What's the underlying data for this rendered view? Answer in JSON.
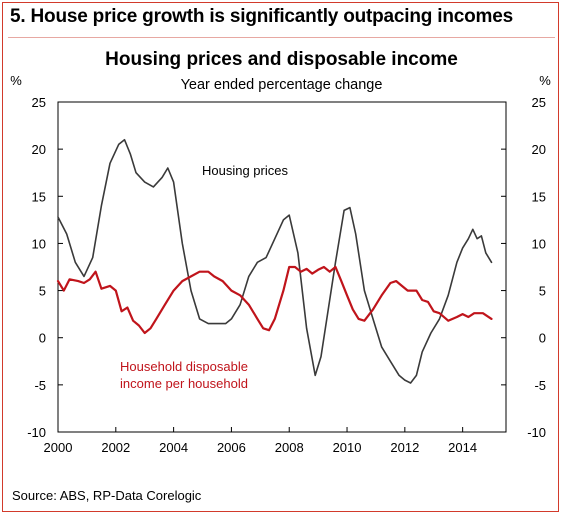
{
  "header": {
    "title": "5. House price growth is significantly outpacing incomes"
  },
  "footer": {
    "source": "Source: ABS, RP-Data Corelogic"
  },
  "chart_data": {
    "type": "line",
    "title": "Housing prices and disposable income",
    "subtitle": "Year ended percentage change",
    "y_unit_left": "%",
    "y_unit_right": "%",
    "ylim": [
      -10,
      25
    ],
    "yticks": [
      -10,
      -5,
      0,
      5,
      10,
      15,
      20,
      25
    ],
    "xlim": [
      2000,
      2015.5
    ],
    "xticks": [
      2000,
      2002,
      2004,
      2006,
      2008,
      2010,
      2012,
      2014
    ],
    "grid": false,
    "legend": "inline labels",
    "series": [
      {
        "name": "Housing prices",
        "color": "#3a3a3a",
        "points": [
          [
            2000.0,
            12.8
          ],
          [
            2000.3,
            11.0
          ],
          [
            2000.6,
            8.0
          ],
          [
            2000.9,
            6.5
          ],
          [
            2001.2,
            8.5
          ],
          [
            2001.5,
            14.0
          ],
          [
            2001.8,
            18.5
          ],
          [
            2002.1,
            20.5
          ],
          [
            2002.3,
            21.0
          ],
          [
            2002.5,
            19.5
          ],
          [
            2002.7,
            17.5
          ],
          [
            2003.0,
            16.5
          ],
          [
            2003.3,
            16.0
          ],
          [
            2003.6,
            17.0
          ],
          [
            2003.8,
            18.0
          ],
          [
            2004.0,
            16.5
          ],
          [
            2004.3,
            10.0
          ],
          [
            2004.6,
            5.0
          ],
          [
            2004.9,
            2.0
          ],
          [
            2005.2,
            1.5
          ],
          [
            2005.5,
            1.5
          ],
          [
            2005.8,
            1.5
          ],
          [
            2006.0,
            2.0
          ],
          [
            2006.3,
            3.5
          ],
          [
            2006.6,
            6.5
          ],
          [
            2006.9,
            8.0
          ],
          [
            2007.2,
            8.5
          ],
          [
            2007.5,
            10.5
          ],
          [
            2007.8,
            12.5
          ],
          [
            2008.0,
            13.0
          ],
          [
            2008.3,
            9.0
          ],
          [
            2008.6,
            1.0
          ],
          [
            2008.9,
            -4.0
          ],
          [
            2009.1,
            -2.0
          ],
          [
            2009.3,
            2.0
          ],
          [
            2009.6,
            8.0
          ],
          [
            2009.9,
            13.5
          ],
          [
            2010.1,
            13.8
          ],
          [
            2010.3,
            11.0
          ],
          [
            2010.6,
            5.0
          ],
          [
            2010.9,
            2.0
          ],
          [
            2011.2,
            -1.0
          ],
          [
            2011.5,
            -2.5
          ],
          [
            2011.8,
            -4.0
          ],
          [
            2012.0,
            -4.5
          ],
          [
            2012.2,
            -4.8
          ],
          [
            2012.4,
            -4.0
          ],
          [
            2012.6,
            -1.5
          ],
          [
            2012.9,
            0.5
          ],
          [
            2013.2,
            2.0
          ],
          [
            2013.5,
            4.5
          ],
          [
            2013.8,
            8.0
          ],
          [
            2014.0,
            9.5
          ],
          [
            2014.2,
            10.5
          ],
          [
            2014.35,
            11.5
          ],
          [
            2014.5,
            10.5
          ],
          [
            2014.65,
            10.8
          ],
          [
            2014.8,
            9.0
          ],
          [
            2015.0,
            8.0
          ]
        ]
      },
      {
        "name": "Household disposable income per household",
        "label_lines": [
          "Household disposable",
          "income per household"
        ],
        "color": "#c0141b",
        "points": [
          [
            2000.0,
            6.0
          ],
          [
            2000.2,
            5.0
          ],
          [
            2000.4,
            6.2
          ],
          [
            2000.7,
            6.0
          ],
          [
            2000.9,
            5.8
          ],
          [
            2001.1,
            6.2
          ],
          [
            2001.3,
            7.0
          ],
          [
            2001.5,
            5.2
          ],
          [
            2001.8,
            5.5
          ],
          [
            2002.0,
            5.0
          ],
          [
            2002.2,
            2.8
          ],
          [
            2002.4,
            3.2
          ],
          [
            2002.6,
            1.8
          ],
          [
            2002.8,
            1.3
          ],
          [
            2003.0,
            0.5
          ],
          [
            2003.2,
            1.0
          ],
          [
            2003.4,
            2.0
          ],
          [
            2003.7,
            3.5
          ],
          [
            2004.0,
            5.0
          ],
          [
            2004.3,
            6.0
          ],
          [
            2004.6,
            6.5
          ],
          [
            2004.9,
            7.0
          ],
          [
            2005.2,
            7.0
          ],
          [
            2005.4,
            6.5
          ],
          [
            2005.7,
            6.0
          ],
          [
            2006.0,
            5.0
          ],
          [
            2006.3,
            4.5
          ],
          [
            2006.6,
            3.5
          ],
          [
            2006.9,
            2.0
          ],
          [
            2007.1,
            1.0
          ],
          [
            2007.3,
            0.8
          ],
          [
            2007.5,
            2.0
          ],
          [
            2007.8,
            5.0
          ],
          [
            2008.0,
            7.5
          ],
          [
            2008.2,
            7.5
          ],
          [
            2008.4,
            7.0
          ],
          [
            2008.6,
            7.3
          ],
          [
            2008.8,
            6.8
          ],
          [
            2009.0,
            7.2
          ],
          [
            2009.2,
            7.5
          ],
          [
            2009.4,
            7.0
          ],
          [
            2009.6,
            7.5
          ],
          [
            2009.8,
            6.0
          ],
          [
            2010.0,
            4.5
          ],
          [
            2010.2,
            3.0
          ],
          [
            2010.4,
            2.0
          ],
          [
            2010.6,
            1.8
          ],
          [
            2010.9,
            3.0
          ],
          [
            2011.2,
            4.5
          ],
          [
            2011.5,
            5.8
          ],
          [
            2011.7,
            6.0
          ],
          [
            2011.9,
            5.5
          ],
          [
            2012.1,
            5.0
          ],
          [
            2012.4,
            5.0
          ],
          [
            2012.6,
            4.0
          ],
          [
            2012.8,
            3.8
          ],
          [
            2013.0,
            2.8
          ],
          [
            2013.2,
            2.6
          ],
          [
            2013.5,
            1.8
          ],
          [
            2013.8,
            2.2
          ],
          [
            2014.0,
            2.5
          ],
          [
            2014.2,
            2.2
          ],
          [
            2014.4,
            2.6
          ],
          [
            2014.7,
            2.6
          ],
          [
            2015.0,
            2.0
          ]
        ]
      }
    ]
  }
}
